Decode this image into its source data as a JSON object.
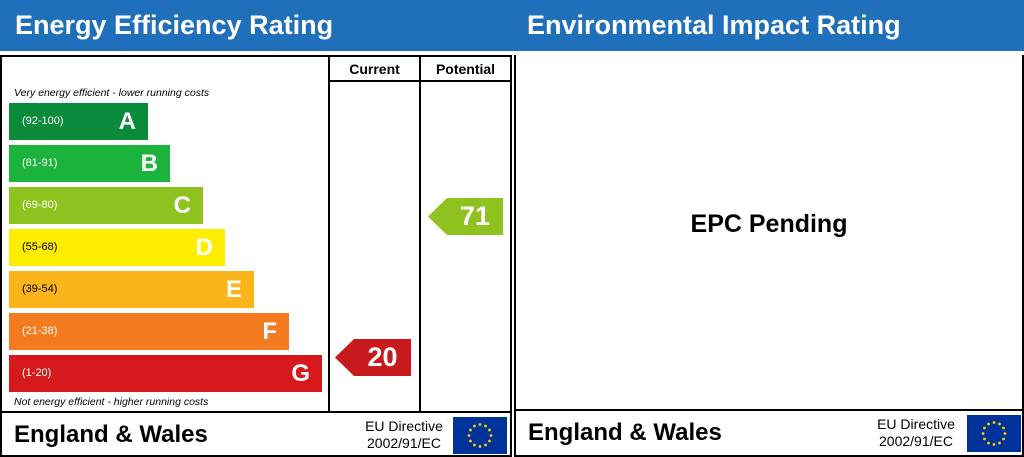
{
  "energy": {
    "title": "Energy Efficiency Rating",
    "col_current": "Current",
    "col_potential": "Potential",
    "note_top": "Very energy efficient - lower running costs",
    "note_bottom": "Not energy efficient - higher running costs",
    "bands": [
      {
        "range": "(92-100)",
        "letter": "A",
        "color": "#0a8a3a"
      },
      {
        "range": "(81-91)",
        "letter": "B",
        "color": "#1bb33c"
      },
      {
        "range": "(69-80)",
        "letter": "C",
        "color": "#8dc21f"
      },
      {
        "range": "(55-68)",
        "letter": "D",
        "color": "#ffed00"
      },
      {
        "range": "(39-54)",
        "letter": "E",
        "color": "#fbb51a"
      },
      {
        "range": "(21-38)",
        "letter": "F",
        "color": "#f47b20"
      },
      {
        "range": "(1-20)",
        "letter": "G",
        "color": "#d5191c"
      }
    ],
    "current": {
      "value": "20",
      "band": "G",
      "color": "#c8191c"
    },
    "potential": {
      "value": "71",
      "band": "C",
      "color": "#8dc21f"
    },
    "footer": {
      "country": "England & Wales",
      "directive_line1": "EU Directive",
      "directive_line2": "2002/91/EC"
    }
  },
  "environment": {
    "title": "Environmental Impact Rating",
    "status": "EPC Pending",
    "footer": {
      "country": "England & Wales",
      "directive_line1": "EU Directive",
      "directive_line2": "2002/91/EC"
    }
  },
  "colors": {
    "header": "#1f6fba",
    "flag": "#003399",
    "flag_stars": "#ffcc00"
  },
  "icons": {
    "flag": "eu-flag-icon"
  }
}
